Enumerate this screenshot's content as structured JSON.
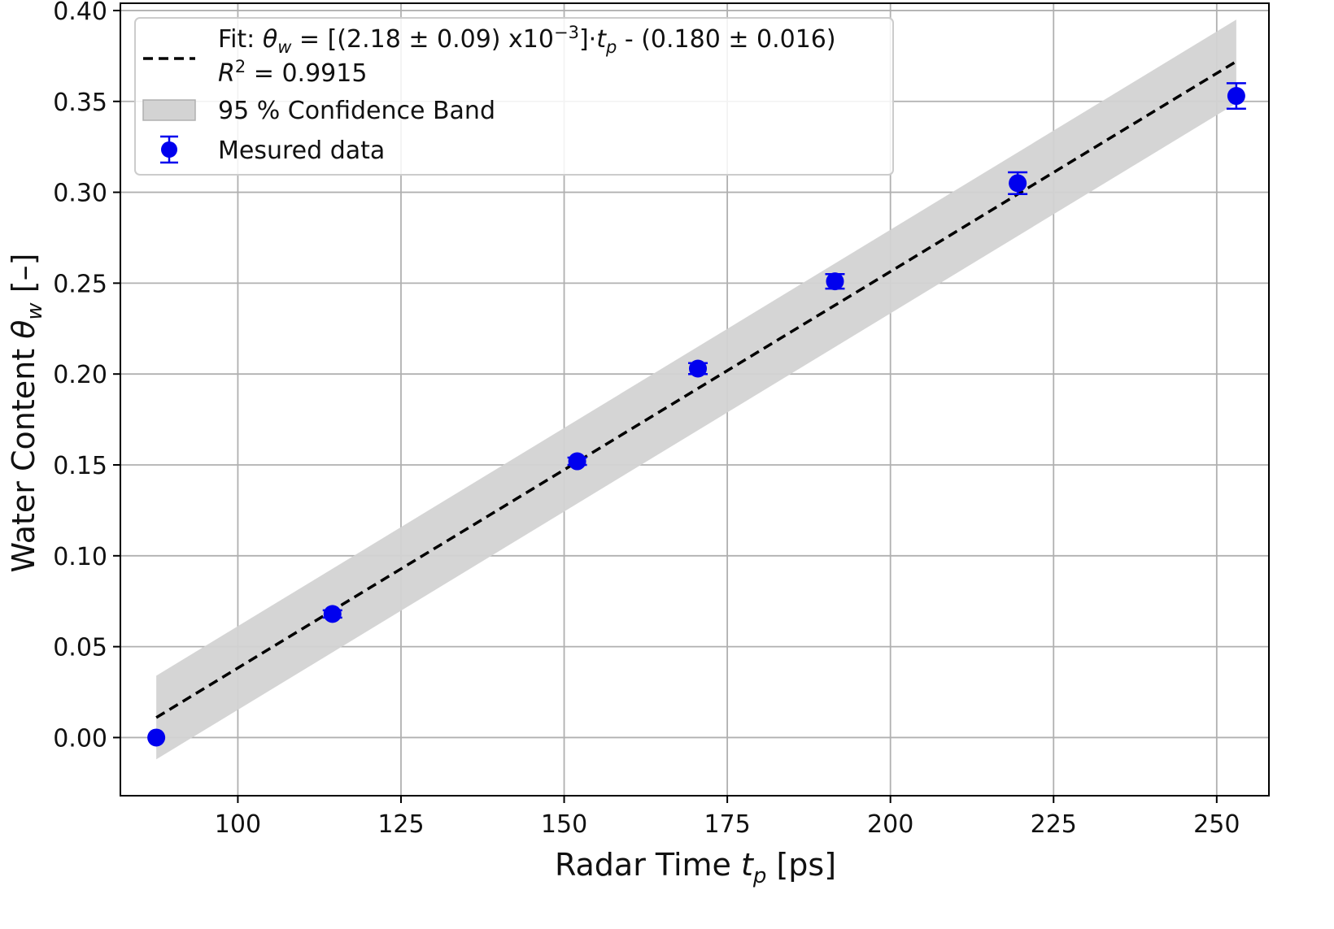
{
  "chart_data": {
    "type": "scatter",
    "xlabel": {
      "prefix": "Radar Time ",
      "symbol": "t",
      "subscript": "p",
      "suffix": " [ps]"
    },
    "ylabel": {
      "prefix": "Water Content ",
      "symbol": "θ",
      "subscript": "w",
      "suffix": " [–]"
    },
    "xlim": [
      82,
      258
    ],
    "ylim": [
      -0.032,
      0.404
    ],
    "xticks": [
      100,
      125,
      150,
      175,
      200,
      225,
      250
    ],
    "xtick_labels": [
      "100",
      "125",
      "150",
      "175",
      "200",
      "225",
      "250"
    ],
    "yticks": [
      0.0,
      0.05,
      0.1,
      0.15,
      0.2,
      0.25,
      0.3,
      0.35,
      0.4
    ],
    "ytick_labels": [
      "0.00",
      "0.05",
      "0.10",
      "0.15",
      "0.20",
      "0.25",
      "0.30",
      "0.35",
      "0.40"
    ],
    "grid": true,
    "legend_position": "top-left",
    "series": [
      {
        "name": "Mesured data",
        "kind": "errorbar",
        "color": "#0000ee",
        "x": [
          87.5,
          114.5,
          152.0,
          170.5,
          191.5,
          219.5,
          253.0
        ],
        "y": [
          0.0,
          0.068,
          0.152,
          0.203,
          0.251,
          0.305,
          0.353
        ],
        "yerr": [
          0.0,
          0.002,
          0.002,
          0.003,
          0.004,
          0.006,
          0.007
        ]
      },
      {
        "name": "fit",
        "kind": "line",
        "style": "dashed",
        "color": "#000000",
        "x": [
          87.5,
          253.0
        ],
        "y": [
          0.011,
          0.372
        ]
      },
      {
        "name": "95 % Confidence Band",
        "kind": "band",
        "color": "#d3d3d3",
        "x": [
          87.5,
          253.0
        ],
        "lower": [
          -0.012,
          0.349
        ],
        "upper": [
          0.034,
          0.395
        ]
      }
    ],
    "legend": {
      "fit_text": {
        "l1_a": "Fit: ",
        "l1_sym": "θ",
        "l1_sub": "w",
        "l1_b": " = [(2.18 ± 0.09) x10",
        "l1_exp": "−3",
        "l1_c": "]·",
        "l1_sym2": "t",
        "l1_sub2": "p",
        "l1_d": " - (0.180 ± 0.016)",
        "l2_sym": "R",
        "l2_exp": "2",
        "l2_b": " = 0.9915"
      },
      "band_label": "95 % Confidence Band",
      "data_label": "Mesured data"
    }
  }
}
